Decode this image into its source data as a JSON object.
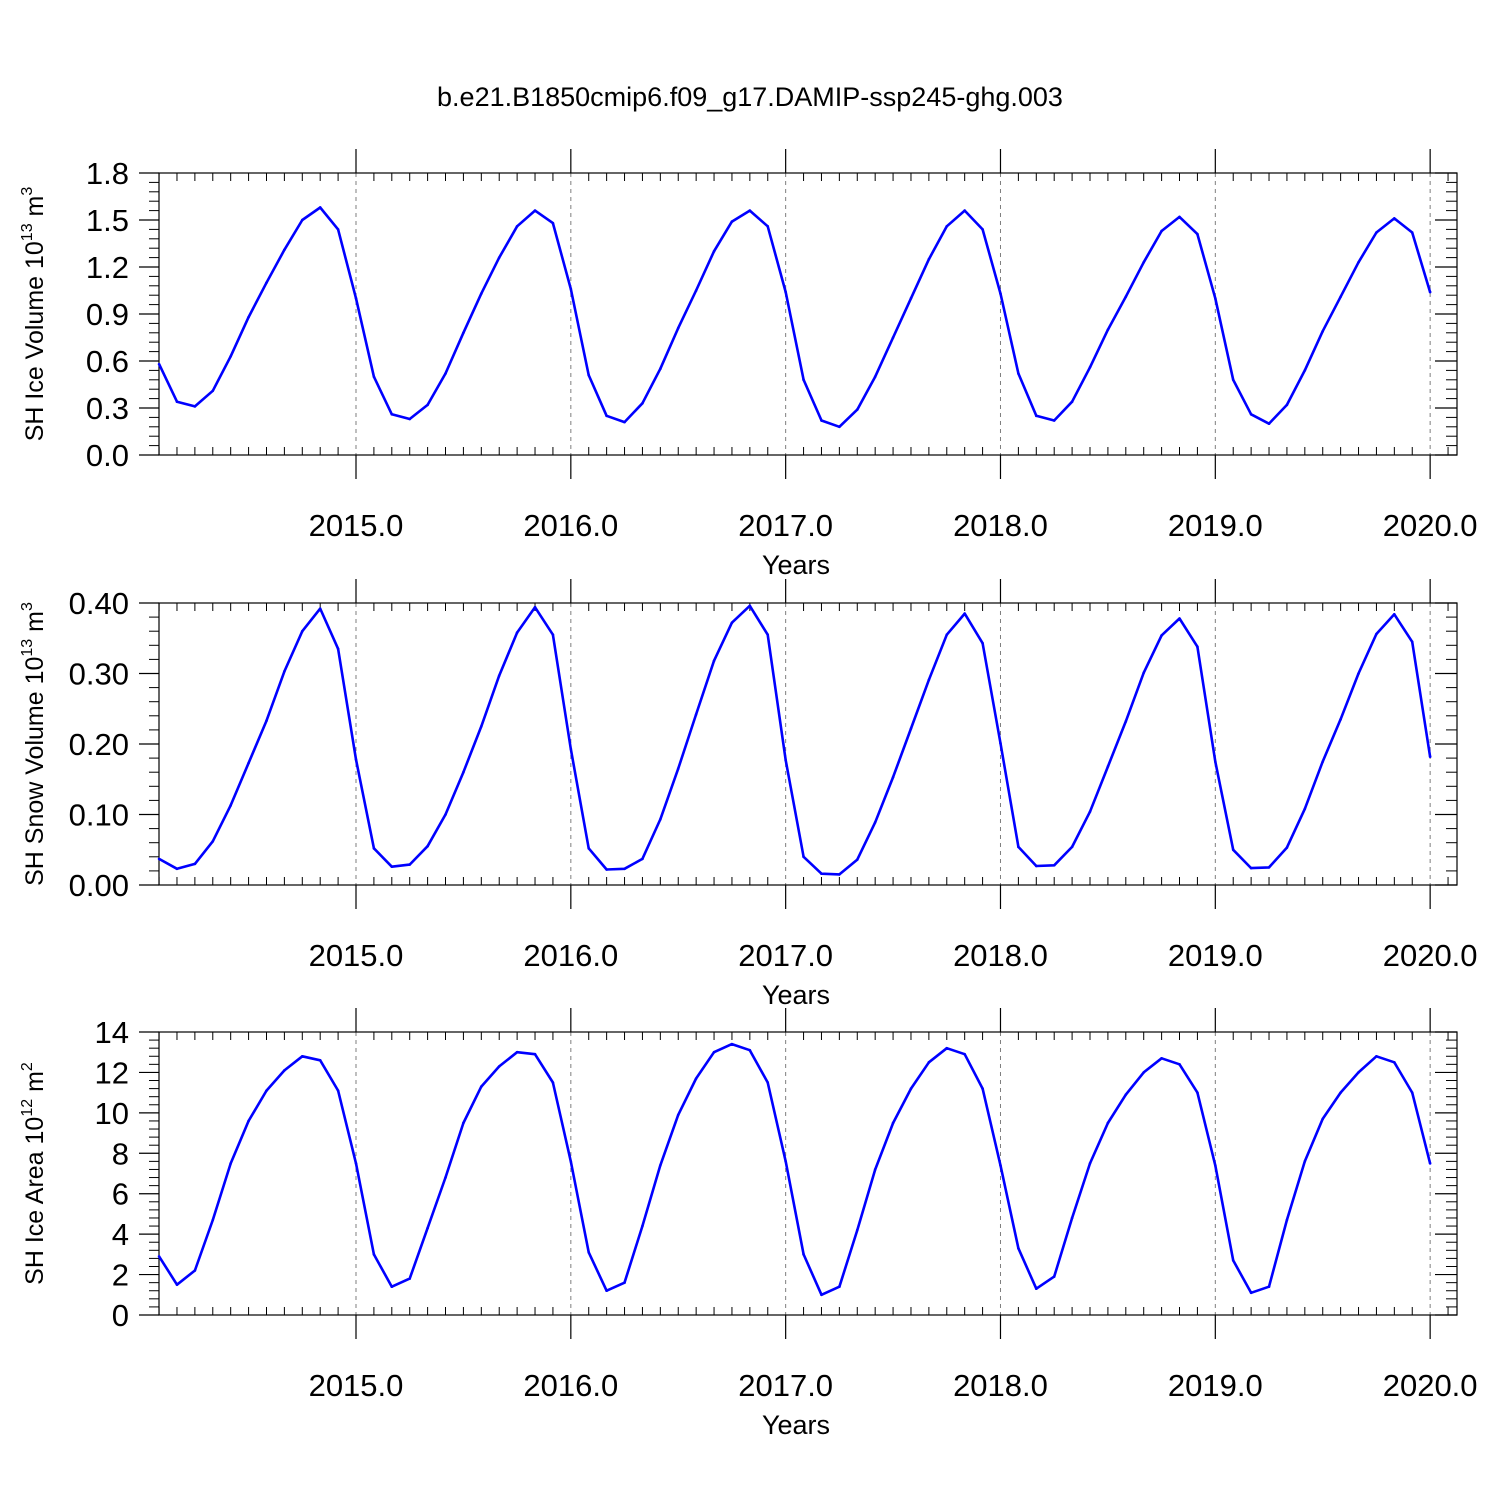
{
  "title": "b.e21.B1850cmip6.f09_g17.DAMIP-ssp245-ghg.003",
  "colors": {
    "series": "#0000ff",
    "axis": "#000000",
    "gridline": "#7f7f7f"
  },
  "chart_data": [
    {
      "type": "line",
      "ylabel": "SH Ice Volume 10",
      "ylabel_sup": "13",
      "ylabel_unit": "m",
      "ylabel_unit_sup": "3",
      "xlabel": "Years",
      "xlim": [
        2014.083,
        2020.125
      ],
      "ylim": [
        0.0,
        1.8
      ],
      "yticks": [
        0.0,
        0.3,
        0.6,
        0.9,
        1.2,
        1.5,
        1.8
      ],
      "ytick_labels": [
        "0.0",
        "0.3",
        "0.6",
        "0.9",
        "1.2",
        "1.5",
        "1.8"
      ],
      "xticks": [
        2015.0,
        2016.0,
        2017.0,
        2018.0,
        2019.0,
        2020.0
      ],
      "xtick_labels": [
        "2015.0",
        "2016.0",
        "2017.0",
        "2018.0",
        "2019.0",
        "2020.0"
      ],
      "grid": "dashed vertical at major x ticks",
      "x_start": 2014.0833,
      "x_step": 0.0833333,
      "values": [
        0.58,
        0.34,
        0.31,
        0.41,
        0.63,
        0.88,
        1.1,
        1.31,
        1.5,
        1.58,
        1.44,
        1.0,
        0.5,
        0.26,
        0.23,
        0.32,
        0.52,
        0.78,
        1.03,
        1.26,
        1.46,
        1.56,
        1.48,
        1.06,
        0.51,
        0.25,
        0.21,
        0.33,
        0.55,
        0.81,
        1.05,
        1.3,
        1.49,
        1.56,
        1.46,
        1.04,
        0.48,
        0.22,
        0.18,
        0.29,
        0.5,
        0.75,
        1.0,
        1.25,
        1.46,
        1.56,
        1.44,
        1.03,
        0.52,
        0.25,
        0.22,
        0.34,
        0.56,
        0.8,
        1.01,
        1.23,
        1.43,
        1.52,
        1.41,
        1.0,
        0.48,
        0.26,
        0.2,
        0.32,
        0.54,
        0.79,
        1.01,
        1.23,
        1.42,
        1.51,
        1.42,
        1.04
      ]
    },
    {
      "type": "line",
      "ylabel": "SH Snow Volume 10",
      "ylabel_sup": "13",
      "ylabel_unit": "m",
      "ylabel_unit_sup": "3",
      "xlabel": "Years",
      "xlim": [
        2014.083,
        2020.125
      ],
      "ylim": [
        0.0,
        0.4
      ],
      "yticks": [
        0.0,
        0.1,
        0.2,
        0.3,
        0.4
      ],
      "ytick_labels": [
        "0.00",
        "0.10",
        "0.20",
        "0.30",
        "0.40"
      ],
      "xticks": [
        2015.0,
        2016.0,
        2017.0,
        2018.0,
        2019.0,
        2020.0
      ],
      "xtick_labels": [
        "2015.0",
        "2016.0",
        "2017.0",
        "2018.0",
        "2019.0",
        "2020.0"
      ],
      "grid": "dashed vertical at major x ticks",
      "x_start": 2014.0833,
      "x_step": 0.0833333,
      "values": [
        0.037,
        0.023,
        0.03,
        0.062,
        0.113,
        0.173,
        0.233,
        0.303,
        0.36,
        0.392,
        0.335,
        0.178,
        0.052,
        0.026,
        0.029,
        0.055,
        0.1,
        0.16,
        0.225,
        0.297,
        0.358,
        0.394,
        0.355,
        0.193,
        0.052,
        0.022,
        0.023,
        0.037,
        0.093,
        0.165,
        0.242,
        0.318,
        0.372,
        0.396,
        0.355,
        0.177,
        0.04,
        0.016,
        0.015,
        0.036,
        0.089,
        0.153,
        0.222,
        0.291,
        0.355,
        0.385,
        0.343,
        0.201,
        0.054,
        0.027,
        0.028,
        0.054,
        0.104,
        0.168,
        0.232,
        0.301,
        0.354,
        0.378,
        0.338,
        0.175,
        0.05,
        0.024,
        0.025,
        0.053,
        0.108,
        0.175,
        0.235,
        0.3,
        0.356,
        0.384,
        0.345,
        0.182
      ]
    },
    {
      "type": "line",
      "ylabel": "SH Ice Area 10",
      "ylabel_sup": "12",
      "ylabel_unit": "m",
      "ylabel_unit_sup": "2",
      "xlabel": "Years",
      "xlim": [
        2014.083,
        2020.125
      ],
      "ylim": [
        0,
        14
      ],
      "yticks": [
        0,
        2,
        4,
        6,
        8,
        10,
        12,
        14
      ],
      "ytick_labels": [
        "0",
        "2",
        "4",
        "6",
        "8",
        "10",
        "12",
        "14"
      ],
      "xticks": [
        2015.0,
        2016.0,
        2017.0,
        2018.0,
        2019.0,
        2020.0
      ],
      "xtick_labels": [
        "2015.0",
        "2016.0",
        "2017.0",
        "2018.0",
        "2019.0",
        "2020.0"
      ],
      "grid": "dashed vertical at major x ticks",
      "x_start": 2014.0833,
      "x_step": 0.0833333,
      "values": [
        2.9,
        1.5,
        2.2,
        4.7,
        7.5,
        9.6,
        11.1,
        12.1,
        12.8,
        12.6,
        11.1,
        7.5,
        3.0,
        1.4,
        1.8,
        4.3,
        6.8,
        9.5,
        11.3,
        12.3,
        13.0,
        12.9,
        11.5,
        7.6,
        3.1,
        1.2,
        1.6,
        4.4,
        7.4,
        9.9,
        11.7,
        13.0,
        13.4,
        13.1,
        11.5,
        7.6,
        3.0,
        1.0,
        1.4,
        4.2,
        7.2,
        9.5,
        11.2,
        12.5,
        13.2,
        12.9,
        11.2,
        7.4,
        3.3,
        1.3,
        1.9,
        4.8,
        7.5,
        9.5,
        10.9,
        12.0,
        12.7,
        12.4,
        11.0,
        7.4,
        2.7,
        1.1,
        1.4,
        4.7,
        7.6,
        9.7,
        11.0,
        12.0,
        12.8,
        12.5,
        11.0,
        7.5
      ]
    }
  ]
}
